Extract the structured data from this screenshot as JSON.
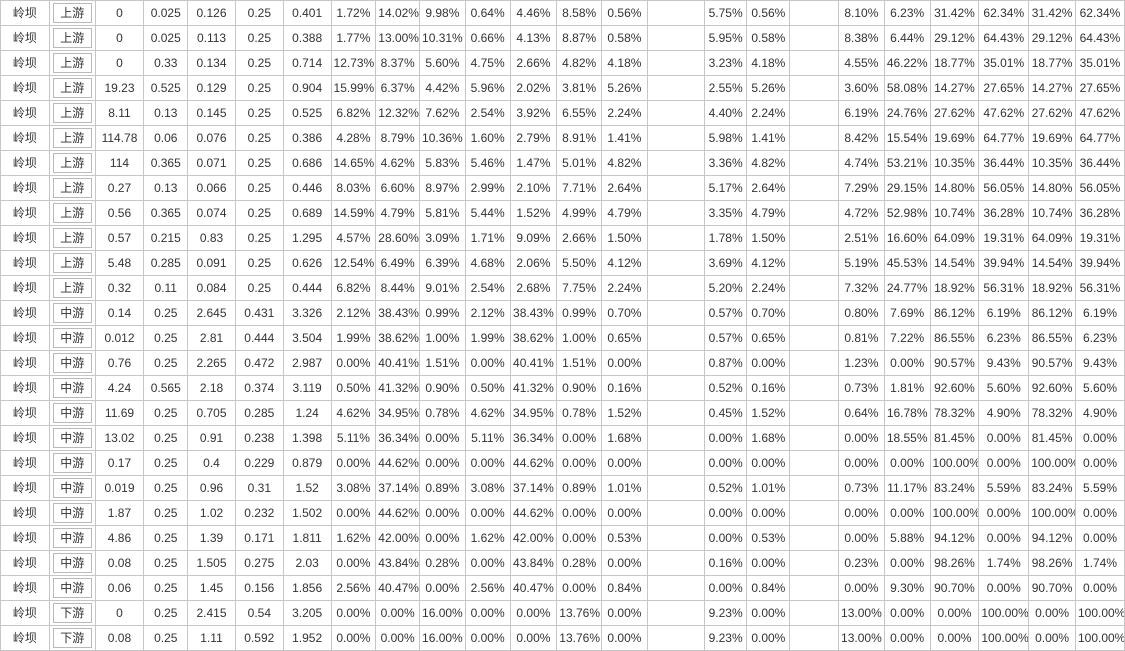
{
  "table": {
    "rows": [
      [
        "岭坝",
        "上游",
        "0",
        "0.025",
        "0.126",
        "0.25",
        "0.401",
        "1.72%",
        "14.02%",
        "9.98%",
        "0.64%",
        "4.46%",
        "8.58%",
        "0.56%",
        "",
        "5.75%",
        "0.56%",
        "",
        "8.10%",
        "6.23%",
        "31.42%",
        "62.34%",
        "31.42%",
        "62.34%"
      ],
      [
        "岭坝",
        "上游",
        "0",
        "0.025",
        "0.113",
        "0.25",
        "0.388",
        "1.77%",
        "13.00%",
        "10.31%",
        "0.66%",
        "4.13%",
        "8.87%",
        "0.58%",
        "",
        "5.95%",
        "0.58%",
        "",
        "8.38%",
        "6.44%",
        "29.12%",
        "64.43%",
        "29.12%",
        "64.43%"
      ],
      [
        "岭坝",
        "上游",
        "0",
        "0.33",
        "0.134",
        "0.25",
        "0.714",
        "12.73%",
        "8.37%",
        "5.60%",
        "4.75%",
        "2.66%",
        "4.82%",
        "4.18%",
        "",
        "3.23%",
        "4.18%",
        "",
        "4.55%",
        "46.22%",
        "18.77%",
        "35.01%",
        "18.77%",
        "35.01%"
      ],
      [
        "岭坝",
        "上游",
        "19.23",
        "0.525",
        "0.129",
        "0.25",
        "0.904",
        "15.99%",
        "6.37%",
        "4.42%",
        "5.96%",
        "2.02%",
        "3.81%",
        "5.26%",
        "",
        "2.55%",
        "5.26%",
        "",
        "3.60%",
        "58.08%",
        "14.27%",
        "27.65%",
        "14.27%",
        "27.65%"
      ],
      [
        "岭坝",
        "上游",
        "8.11",
        "0.13",
        "0.145",
        "0.25",
        "0.525",
        "6.82%",
        "12.32%",
        "7.62%",
        "2.54%",
        "3.92%",
        "6.55%",
        "2.24%",
        "",
        "4.40%",
        "2.24%",
        "",
        "6.19%",
        "24.76%",
        "27.62%",
        "47.62%",
        "27.62%",
        "47.62%"
      ],
      [
        "岭坝",
        "上游",
        "114.78",
        "0.06",
        "0.076",
        "0.25",
        "0.386",
        "4.28%",
        "8.79%",
        "10.36%",
        "1.60%",
        "2.79%",
        "8.91%",
        "1.41%",
        "",
        "5.98%",
        "1.41%",
        "",
        "8.42%",
        "15.54%",
        "19.69%",
        "64.77%",
        "19.69%",
        "64.77%"
      ],
      [
        "岭坝",
        "上游",
        "114",
        "0.365",
        "0.071",
        "0.25",
        "0.686",
        "14.65%",
        "4.62%",
        "5.83%",
        "5.46%",
        "1.47%",
        "5.01%",
        "4.82%",
        "",
        "3.36%",
        "4.82%",
        "",
        "4.74%",
        "53.21%",
        "10.35%",
        "36.44%",
        "10.35%",
        "36.44%"
      ],
      [
        "岭坝",
        "上游",
        "0.27",
        "0.13",
        "0.066",
        "0.25",
        "0.446",
        "8.03%",
        "6.60%",
        "8.97%",
        "2.99%",
        "2.10%",
        "7.71%",
        "2.64%",
        "",
        "5.17%",
        "2.64%",
        "",
        "7.29%",
        "29.15%",
        "14.80%",
        "56.05%",
        "14.80%",
        "56.05%"
      ],
      [
        "岭坝",
        "上游",
        "0.56",
        "0.365",
        "0.074",
        "0.25",
        "0.689",
        "14.59%",
        "4.79%",
        "5.81%",
        "5.44%",
        "1.52%",
        "4.99%",
        "4.79%",
        "",
        "3.35%",
        "4.79%",
        "",
        "4.72%",
        "52.98%",
        "10.74%",
        "36.28%",
        "10.74%",
        "36.28%"
      ],
      [
        "岭坝",
        "上游",
        "0.57",
        "0.215",
        "0.83",
        "0.25",
        "1.295",
        "4.57%",
        "28.60%",
        "3.09%",
        "1.71%",
        "9.09%",
        "2.66%",
        "1.50%",
        "",
        "1.78%",
        "1.50%",
        "",
        "2.51%",
        "16.60%",
        "64.09%",
        "19.31%",
        "64.09%",
        "19.31%"
      ],
      [
        "岭坝",
        "上游",
        "5.48",
        "0.285",
        "0.091",
        "0.25",
        "0.626",
        "12.54%",
        "6.49%",
        "6.39%",
        "4.68%",
        "2.06%",
        "5.50%",
        "4.12%",
        "",
        "3.69%",
        "4.12%",
        "",
        "5.19%",
        "45.53%",
        "14.54%",
        "39.94%",
        "14.54%",
        "39.94%"
      ],
      [
        "岭坝",
        "上游",
        "0.32",
        "0.11",
        "0.084",
        "0.25",
        "0.444",
        "6.82%",
        "8.44%",
        "9.01%",
        "2.54%",
        "2.68%",
        "7.75%",
        "2.24%",
        "",
        "5.20%",
        "2.24%",
        "",
        "7.32%",
        "24.77%",
        "18.92%",
        "56.31%",
        "18.92%",
        "56.31%"
      ],
      [
        "岭坝",
        "中游",
        "0.14",
        "0.25",
        "2.645",
        "0.431",
        "3.326",
        "2.12%",
        "38.43%",
        "0.99%",
        "2.12%",
        "38.43%",
        "0.99%",
        "0.70%",
        "",
        "0.57%",
        "0.70%",
        "",
        "0.80%",
        "7.69%",
        "86.12%",
        "6.19%",
        "86.12%",
        "6.19%"
      ],
      [
        "岭坝",
        "中游",
        "0.012",
        "0.25",
        "2.81",
        "0.444",
        "3.504",
        "1.99%",
        "38.62%",
        "1.00%",
        "1.99%",
        "38.62%",
        "1.00%",
        "0.65%",
        "",
        "0.57%",
        "0.65%",
        "",
        "0.81%",
        "7.22%",
        "86.55%",
        "6.23%",
        "86.55%",
        "6.23%"
      ],
      [
        "岭坝",
        "中游",
        "0.76",
        "0.25",
        "2.265",
        "0.472",
        "2.987",
        "0.00%",
        "40.41%",
        "1.51%",
        "0.00%",
        "40.41%",
        "1.51%",
        "0.00%",
        "",
        "0.87%",
        "0.00%",
        "",
        "1.23%",
        "0.00%",
        "90.57%",
        "9.43%",
        "90.57%",
        "9.43%"
      ],
      [
        "岭坝",
        "中游",
        "4.24",
        "0.565",
        "2.18",
        "0.374",
        "3.119",
        "0.50%",
        "41.32%",
        "0.90%",
        "0.50%",
        "41.32%",
        "0.90%",
        "0.16%",
        "",
        "0.52%",
        "0.16%",
        "",
        "0.73%",
        "1.81%",
        "92.60%",
        "5.60%",
        "92.60%",
        "5.60%"
      ],
      [
        "岭坝",
        "中游",
        "11.69",
        "0.25",
        "0.705",
        "0.285",
        "1.24",
        "4.62%",
        "34.95%",
        "0.78%",
        "4.62%",
        "34.95%",
        "0.78%",
        "1.52%",
        "",
        "0.45%",
        "1.52%",
        "",
        "0.64%",
        "16.78%",
        "78.32%",
        "4.90%",
        "78.32%",
        "4.90%"
      ],
      [
        "岭坝",
        "中游",
        "13.02",
        "0.25",
        "0.91",
        "0.238",
        "1.398",
        "5.11%",
        "36.34%",
        "0.00%",
        "5.11%",
        "36.34%",
        "0.00%",
        "1.68%",
        "",
        "0.00%",
        "1.68%",
        "",
        "0.00%",
        "18.55%",
        "81.45%",
        "0.00%",
        "81.45%",
        "0.00%"
      ],
      [
        "岭坝",
        "中游",
        "0.17",
        "0.25",
        "0.4",
        "0.229",
        "0.879",
        "0.00%",
        "44.62%",
        "0.00%",
        "0.00%",
        "44.62%",
        "0.00%",
        "0.00%",
        "",
        "0.00%",
        "0.00%",
        "",
        "0.00%",
        "0.00%",
        "100.00%",
        "0.00%",
        "100.00%",
        "0.00%"
      ],
      [
        "岭坝",
        "中游",
        "0.019",
        "0.25",
        "0.96",
        "0.31",
        "1.52",
        "3.08%",
        "37.14%",
        "0.89%",
        "3.08%",
        "37.14%",
        "0.89%",
        "1.01%",
        "",
        "0.52%",
        "1.01%",
        "",
        "0.73%",
        "11.17%",
        "83.24%",
        "5.59%",
        "83.24%",
        "5.59%"
      ],
      [
        "岭坝",
        "中游",
        "1.87",
        "0.25",
        "1.02",
        "0.232",
        "1.502",
        "0.00%",
        "44.62%",
        "0.00%",
        "0.00%",
        "44.62%",
        "0.00%",
        "0.00%",
        "",
        "0.00%",
        "0.00%",
        "",
        "0.00%",
        "0.00%",
        "100.00%",
        "0.00%",
        "100.00%",
        "0.00%"
      ],
      [
        "岭坝",
        "中游",
        "4.86",
        "0.25",
        "1.39",
        "0.171",
        "1.811",
        "1.62%",
        "42.00%",
        "0.00%",
        "1.62%",
        "42.00%",
        "0.00%",
        "0.53%",
        "",
        "0.00%",
        "0.53%",
        "",
        "0.00%",
        "5.88%",
        "94.12%",
        "0.00%",
        "94.12%",
        "0.00%"
      ],
      [
        "岭坝",
        "中游",
        "0.08",
        "0.25",
        "1.505",
        "0.275",
        "2.03",
        "0.00%",
        "43.84%",
        "0.28%",
        "0.00%",
        "43.84%",
        "0.28%",
        "0.00%",
        "",
        "0.16%",
        "0.00%",
        "",
        "0.23%",
        "0.00%",
        "98.26%",
        "1.74%",
        "98.26%",
        "1.74%"
      ],
      [
        "岭坝",
        "中游",
        "0.06",
        "0.25",
        "1.45",
        "0.156",
        "1.856",
        "2.56%",
        "40.47%",
        "0.00%",
        "2.56%",
        "40.47%",
        "0.00%",
        "0.84%",
        "",
        "0.00%",
        "0.84%",
        "",
        "0.00%",
        "9.30%",
        "90.70%",
        "0.00%",
        "90.70%",
        "0.00%"
      ],
      [
        "岭坝",
        "下游",
        "0",
        "0.25",
        "2.415",
        "0.54",
        "3.205",
        "0.00%",
        "0.00%",
        "16.00%",
        "0.00%",
        "0.00%",
        "13.76%",
        "0.00%",
        "",
        "9.23%",
        "0.00%",
        "",
        "13.00%",
        "0.00%",
        "0.00%",
        "100.00%",
        "0.00%",
        "100.00%"
      ],
      [
        "岭坝",
        "下游",
        "0.08",
        "0.25",
        "1.11",
        "0.592",
        "1.952",
        "0.00%",
        "0.00%",
        "16.00%",
        "0.00%",
        "0.00%",
        "13.76%",
        "0.00%",
        "",
        "9.23%",
        "0.00%",
        "",
        "13.00%",
        "0.00%",
        "0.00%",
        "100.00%",
        "0.00%",
        "100.00%"
      ]
    ]
  }
}
